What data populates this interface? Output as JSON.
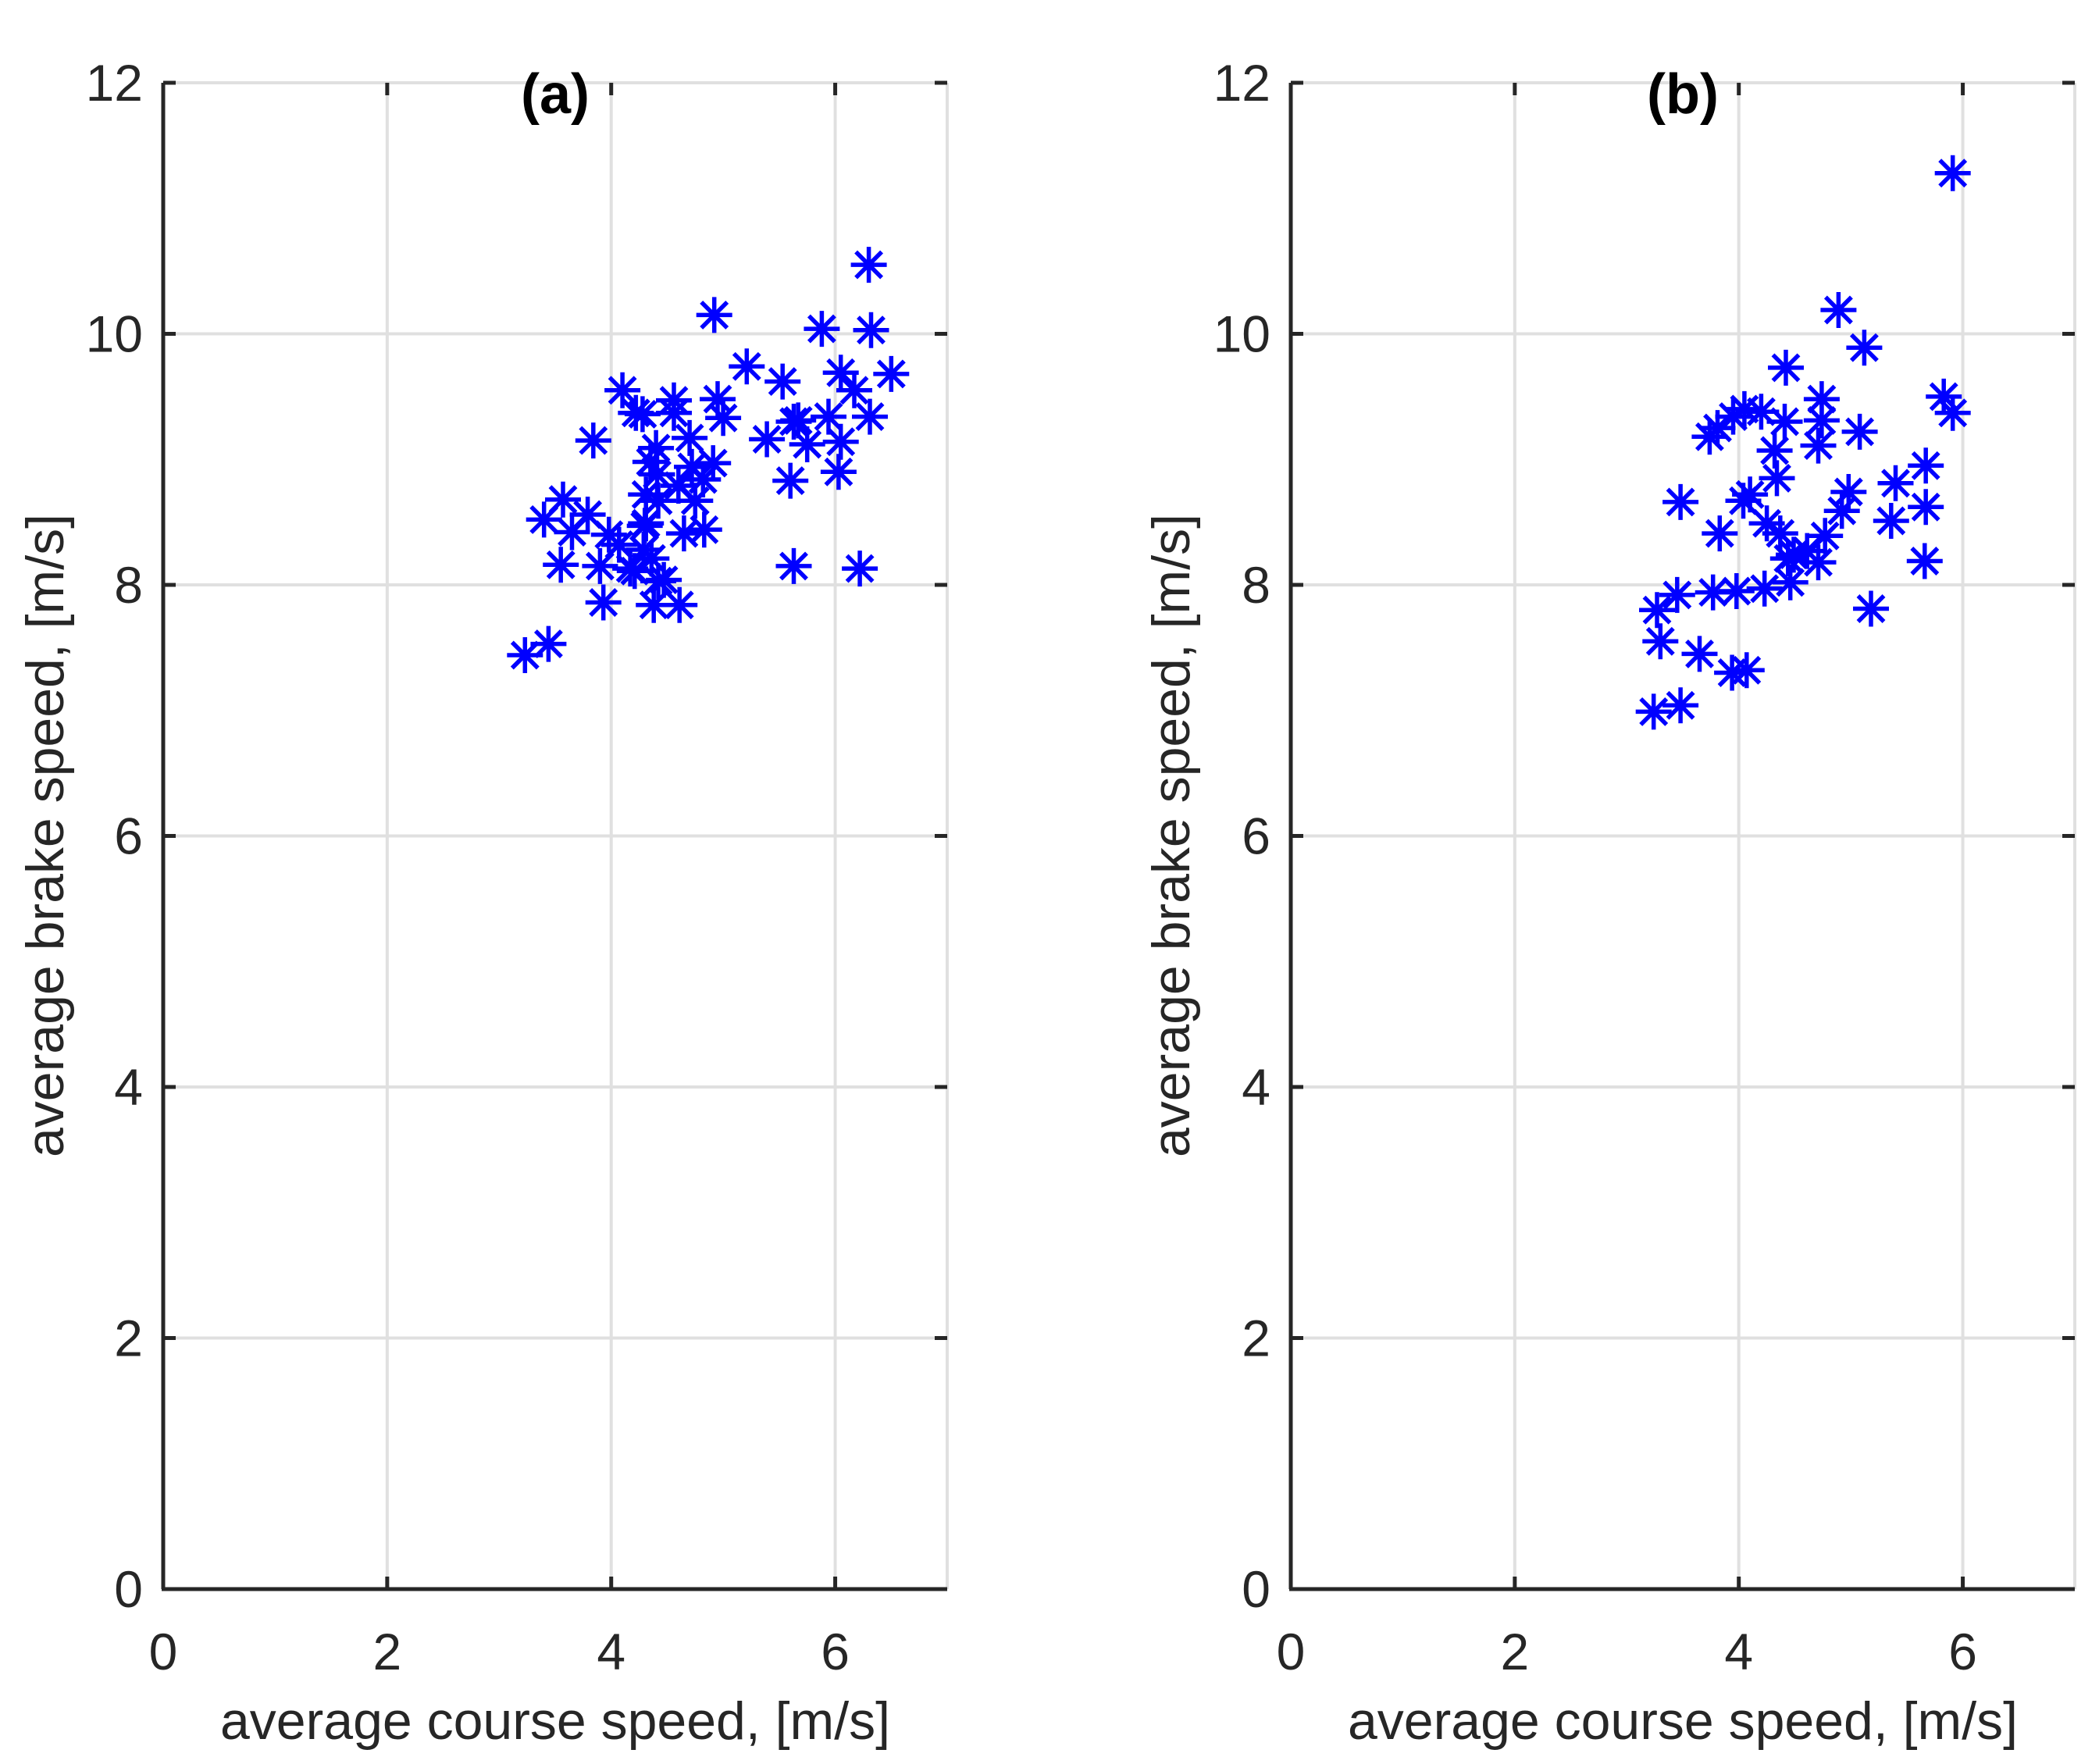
{
  "figure": {
    "background": "#ffffff",
    "marker_style": "asterisk-8-spoke",
    "colors": {
      "marker": "#0000ff",
      "grid": "#e0e0e0",
      "spine": "#262626",
      "tick_label": "#262626",
      "axis_label": "#262626",
      "title": "#000000"
    }
  },
  "chart_data": [
    {
      "id": "a",
      "type": "scatter",
      "title": "(a)",
      "xlabel": "average course speed, [m/s]",
      "ylabel": "average brake speed, [m/s]",
      "xlim": [
        0,
        7
      ],
      "ylim": [
        0,
        12
      ],
      "xticks": [
        0,
        2,
        4,
        6
      ],
      "yticks": [
        0,
        2,
        4,
        6,
        8,
        10,
        12
      ],
      "grid": true,
      "legend": null,
      "points": [
        [
          3.23,
          7.44
        ],
        [
          3.44,
          7.53
        ],
        [
          3.4,
          8.52
        ],
        [
          3.57,
          8.68
        ],
        [
          3.65,
          8.42
        ],
        [
          3.79,
          8.56
        ],
        [
          3.98,
          8.4
        ],
        [
          4.31,
          8.49
        ],
        [
          3.55,
          8.16
        ],
        [
          3.9,
          8.15
        ],
        [
          4.07,
          8.32
        ],
        [
          4.17,
          8.13
        ],
        [
          4.21,
          8.11
        ],
        [
          4.29,
          8.28
        ],
        [
          4.36,
          8.21
        ],
        [
          4.42,
          8.03
        ],
        [
          4.47,
          8.04
        ],
        [
          3.93,
          7.86
        ],
        [
          4.38,
          7.84
        ],
        [
          4.61,
          7.84
        ],
        [
          5.63,
          8.15
        ],
        [
          6.22,
          8.13
        ],
        [
          4.3,
          8.47
        ],
        [
          4.42,
          8.67
        ],
        [
          4.31,
          8.72
        ],
        [
          4.6,
          8.79
        ],
        [
          4.65,
          8.41
        ],
        [
          4.75,
          8.67
        ],
        [
          4.83,
          8.44
        ],
        [
          4.41,
          8.88
        ],
        [
          4.35,
          8.98
        ],
        [
          4.72,
          8.94
        ],
        [
          4.91,
          8.97
        ],
        [
          4.82,
          8.84
        ],
        [
          5.6,
          8.83
        ],
        [
          6.03,
          8.9
        ],
        [
          3.84,
          9.15
        ],
        [
          4.1,
          9.55
        ],
        [
          4.22,
          9.37
        ],
        [
          4.28,
          9.36
        ],
        [
          4.4,
          9.09
        ],
        [
          4.56,
          9.47
        ],
        [
          4.56,
          9.37
        ],
        [
          4.7,
          9.17
        ],
        [
          4.95,
          9.48
        ],
        [
          5.0,
          9.33
        ],
        [
          5.39,
          9.16
        ],
        [
          5.63,
          9.3
        ],
        [
          5.75,
          9.12
        ],
        [
          6.05,
          9.14
        ],
        [
          5.21,
          9.74
        ],
        [
          5.53,
          9.62
        ],
        [
          5.67,
          9.31
        ],
        [
          5.94,
          9.34
        ],
        [
          6.31,
          9.34
        ],
        [
          6.05,
          9.69
        ],
        [
          6.17,
          9.55
        ],
        [
          6.5,
          9.68
        ],
        [
          4.92,
          10.15
        ],
        [
          5.88,
          10.04
        ],
        [
          6.32,
          10.03
        ],
        [
          6.3,
          10.55
        ]
      ]
    },
    {
      "id": "b",
      "type": "scatter",
      "title": "(b)",
      "xlabel": "average course speed, [m/s]",
      "ylabel": "average brake speed, [m/s]",
      "xlim": [
        0,
        7
      ],
      "ylim": [
        0,
        12
      ],
      "xticks": [
        0,
        2,
        4,
        6
      ],
      "yticks": [
        0,
        2,
        4,
        6,
        8,
        10,
        12
      ],
      "grid": true,
      "legend": null,
      "points": [
        [
          3.24,
          6.99
        ],
        [
          3.48,
          7.04
        ],
        [
          3.3,
          7.55
        ],
        [
          3.65,
          7.45
        ],
        [
          3.94,
          7.3
        ],
        [
          4.07,
          7.32
        ],
        [
          3.27,
          7.8
        ],
        [
          3.45,
          7.92
        ],
        [
          3.77,
          7.94
        ],
        [
          3.98,
          7.95
        ],
        [
          4.23,
          7.97
        ],
        [
          4.46,
          8.02
        ],
        [
          5.18,
          7.81
        ],
        [
          4.44,
          8.21
        ],
        [
          4.49,
          8.24
        ],
        [
          4.61,
          8.27
        ],
        [
          4.71,
          8.18
        ],
        [
          5.66,
          8.19
        ],
        [
          3.83,
          8.41
        ],
        [
          4.25,
          8.49
        ],
        [
          4.37,
          8.41
        ],
        [
          4.77,
          8.39
        ],
        [
          3.48,
          8.66
        ],
        [
          4.04,
          8.67
        ],
        [
          4.1,
          8.72
        ],
        [
          4.34,
          8.85
        ],
        [
          4.92,
          8.59
        ],
        [
          4.98,
          8.74
        ],
        [
          5.36,
          8.51
        ],
        [
          5.4,
          8.81
        ],
        [
          5.67,
          8.62
        ],
        [
          5.67,
          8.95
        ],
        [
          3.74,
          9.18
        ],
        [
          3.81,
          9.25
        ],
        [
          3.95,
          9.34
        ],
        [
          4.05,
          9.4
        ],
        [
          4.2,
          9.38
        ],
        [
          4.32,
          9.07
        ],
        [
          4.41,
          9.3
        ],
        [
          4.71,
          9.11
        ],
        [
          4.74,
          9.31
        ],
        [
          4.74,
          9.48
        ],
        [
          5.08,
          9.22
        ],
        [
          5.83,
          9.5
        ],
        [
          5.91,
          9.37
        ],
        [
          4.42,
          9.73
        ],
        [
          5.12,
          9.89
        ],
        [
          4.89,
          10.19
        ],
        [
          5.91,
          11.28
        ]
      ]
    }
  ]
}
